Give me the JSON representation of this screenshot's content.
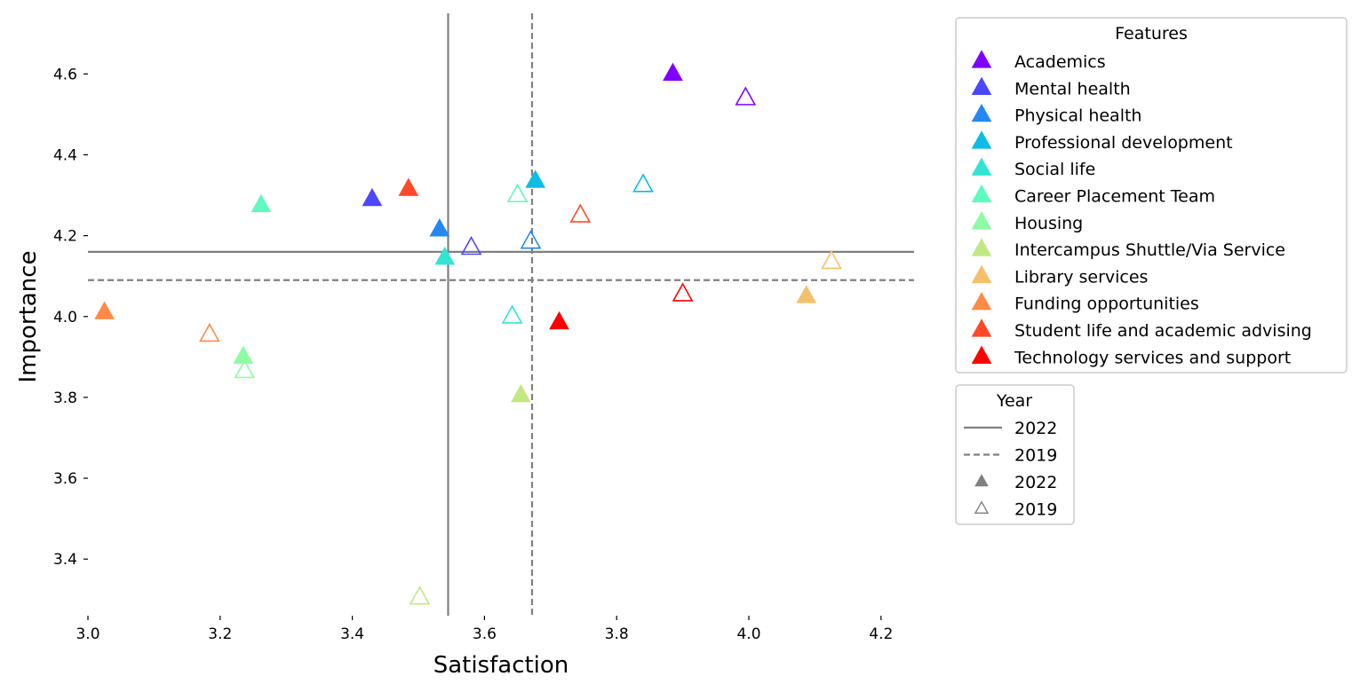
{
  "chart_data": {
    "type": "scatter",
    "xlabel": "Satisfaction",
    "ylabel": "Importance",
    "xlim": [
      3.0,
      4.25
    ],
    "ylim": [
      3.26,
      4.75
    ],
    "xticks": [
      3.0,
      3.2,
      3.4,
      3.6,
      3.8,
      4.0,
      4.2
    ],
    "xtick_labels": [
      "3.0",
      "3.2",
      "3.4",
      "3.6",
      "3.8",
      "4.0",
      "4.2"
    ],
    "yticks": [
      3.4,
      3.6,
      3.8,
      4.0,
      4.2,
      4.4,
      4.6
    ],
    "ytick_labels": [
      "3.4",
      "3.6",
      "3.8",
      "4.0",
      "4.2",
      "4.4",
      "4.6"
    ],
    "grid": false,
    "reference_lines": [
      {
        "year": "2022",
        "style": "solid",
        "x": 3.545,
        "y": 4.16
      },
      {
        "year": "2019",
        "style": "dashed",
        "x": 3.672,
        "y": 4.09
      }
    ],
    "features_legend_title": "Features",
    "year_legend_title": "Year",
    "legend_placement": "right, outside plot",
    "series": [
      {
        "name": "Academics",
        "color": "#8000ff",
        "y2022": [
          3.885,
          4.6
        ],
        "y2019": [
          3.995,
          4.54
        ]
      },
      {
        "name": "Mental health",
        "color": "#4b47fa",
        "y2022": [
          3.43,
          4.29
        ],
        "y2019": [
          3.58,
          4.17
        ]
      },
      {
        "name": "Physical health",
        "color": "#2388f2",
        "y2022": [
          3.532,
          4.215
        ],
        "y2019": [
          3.67,
          4.185
        ]
      },
      {
        "name": "Professional development",
        "color": "#0cbde6",
        "y2022": [
          3.677,
          4.335
        ],
        "y2019": [
          3.84,
          4.325
        ]
      },
      {
        "name": "Social life",
        "color": "#33e4d3",
        "y2022": [
          3.54,
          4.145
        ],
        "y2019": [
          3.642,
          4.0
        ]
      },
      {
        "name": "Career Placement Team",
        "color": "#5ffabf",
        "y2022": [
          3.262,
          4.275
        ],
        "y2019": [
          3.65,
          4.3
        ]
      },
      {
        "name": "Housing",
        "color": "#8dfca4",
        "y2022": [
          3.235,
          3.9
        ],
        "y2019": [
          3.237,
          3.865
        ]
      },
      {
        "name": "Intercampus Shuttle/Via Service",
        "color": "#c2e883",
        "y2022": [
          3.655,
          3.805
        ],
        "y2019": [
          3.502,
          3.305
        ]
      },
      {
        "name": "Library services",
        "color": "#f5c06b",
        "y2022": [
          4.087,
          4.05
        ],
        "y2019": [
          4.125,
          4.135
        ]
      },
      {
        "name": "Funding opportunities",
        "color": "#ff8a48",
        "y2022": [
          3.025,
          4.01
        ],
        "y2019": [
          3.184,
          3.955
        ]
      },
      {
        "name": "Student life and academic advising",
        "color": "#ff4929",
        "y2022": [
          3.485,
          4.315
        ],
        "y2019": [
          3.745,
          4.25
        ]
      },
      {
        "name": "Technology services and support",
        "color": "#ff0000",
        "y2022": [
          3.713,
          3.985
        ],
        "y2019": [
          3.9,
          4.055
        ]
      }
    ],
    "year_legend": [
      {
        "label": "2022",
        "kind": "line-solid"
      },
      {
        "label": "2019",
        "kind": "line-dashed"
      },
      {
        "label": "2022",
        "kind": "marker-filled"
      },
      {
        "label": "2019",
        "kind": "marker-open"
      }
    ]
  }
}
